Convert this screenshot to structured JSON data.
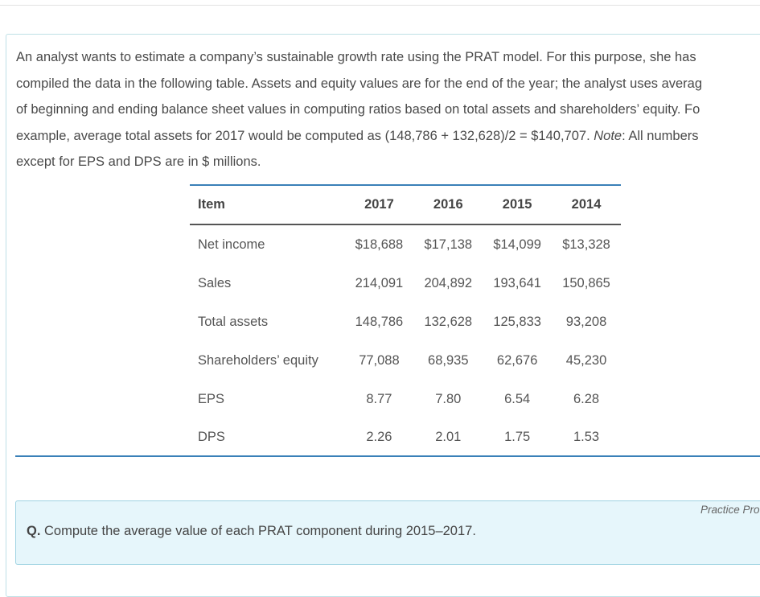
{
  "intro": {
    "line1": "An analyst wants to estimate a company’s sustainable growth rate using the PRAT model. For this purpose, she has",
    "line2": "compiled the data in the following table. Assets and equity values are for the end of the year; the analyst uses averag",
    "line3": "of beginning and ending balance sheet values in computing ratios based on total assets and shareholders’ equity. Fo",
    "line4_a": "example, average total assets for 2017 would be computed as (148,786 + 132,628)/2 = $140,707. ",
    "line4_note": "Note",
    "line4_b": ": All numbers",
    "line5": "except for EPS and DPS are in $ millions."
  },
  "table": {
    "headers": [
      "Item",
      "2017",
      "2016",
      "2015",
      "2014"
    ],
    "rows": [
      {
        "item": "Net income",
        "values": [
          "$18,688",
          "$17,138",
          "$14,099",
          "$13,328"
        ]
      },
      {
        "item": "Sales",
        "values": [
          "214,091",
          "204,892",
          "193,641",
          "150,865"
        ]
      },
      {
        "item": "Total assets",
        "values": [
          "148,786",
          "132,628",
          "125,833",
          "93,208"
        ]
      },
      {
        "item": "Shareholders’ equity",
        "values": [
          "77,088",
          "68,935",
          "62,676",
          "45,230"
        ]
      },
      {
        "item": "EPS",
        "values": [
          "8.77",
          "7.80",
          "6.54",
          "6.28"
        ]
      },
      {
        "item": "DPS",
        "values": [
          "2.26",
          "2.01",
          "1.75",
          "1.53"
        ]
      }
    ]
  },
  "practice_label": "Practice Pro",
  "question": {
    "label": "Q.",
    "text": " Compute the average value of each PRAT component during 2015–2017."
  }
}
